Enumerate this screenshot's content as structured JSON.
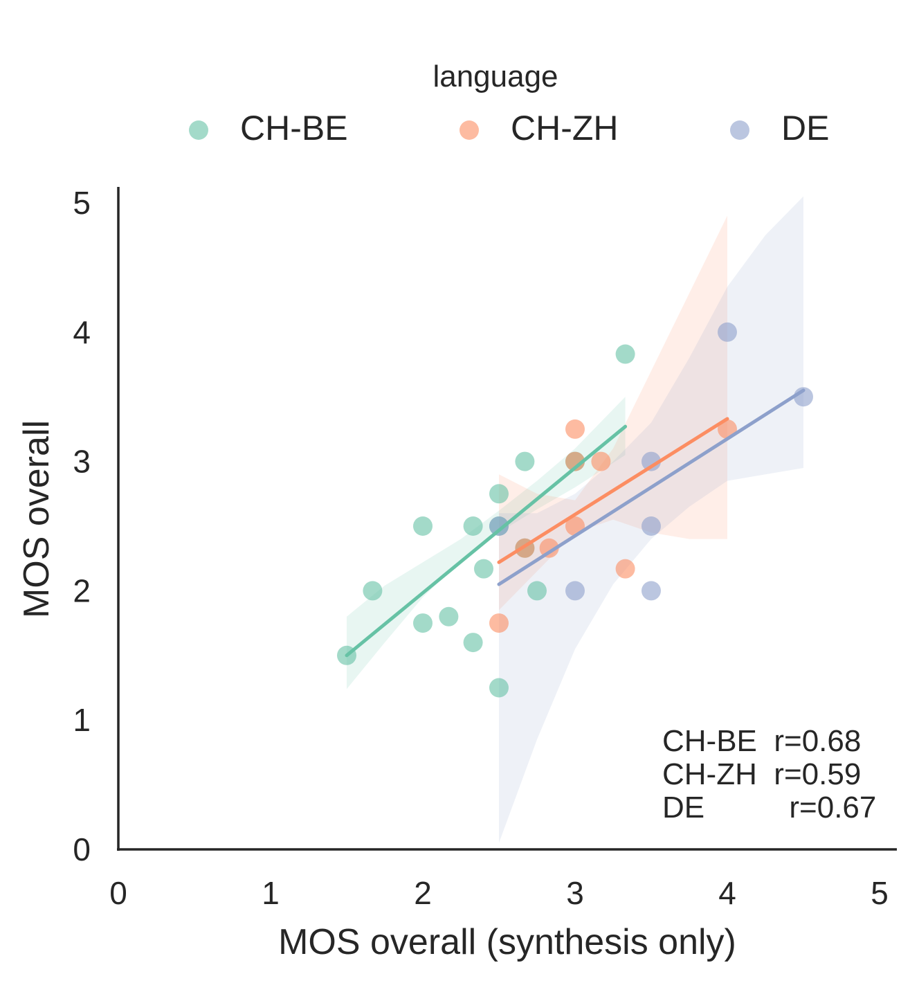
{
  "chart_data": {
    "type": "scatter",
    "xlabel": "MOS overall (synthesis only)",
    "ylabel": "MOS overall",
    "xlim": [
      0,
      5
    ],
    "ylim": [
      0,
      5
    ],
    "xticks": [
      "0",
      "1",
      "2",
      "3",
      "4",
      "5"
    ],
    "yticks": [
      "0",
      "1",
      "2",
      "3",
      "4",
      "5"
    ],
    "legend": {
      "title": "language",
      "placement": "top"
    },
    "series": [
      {
        "name": "CH-BE",
        "color": "#66c2a5",
        "points": [
          [
            1.5,
            1.5
          ],
          [
            1.67,
            2.0
          ],
          [
            2.0,
            2.5
          ],
          [
            2.0,
            1.75
          ],
          [
            2.17,
            1.8
          ],
          [
            2.33,
            2.5
          ],
          [
            2.33,
            1.6
          ],
          [
            2.4,
            2.17
          ],
          [
            2.5,
            2.75
          ],
          [
            2.5,
            2.5
          ],
          [
            2.5,
            1.25
          ],
          [
            2.67,
            3.0
          ],
          [
            2.67,
            2.33
          ],
          [
            2.75,
            2.0
          ],
          [
            3.0,
            3.0
          ],
          [
            3.33,
            3.83
          ]
        ],
        "fit": {
          "x": [
            1.5,
            3.33
          ],
          "y": [
            1.5,
            3.27
          ]
        },
        "ci": {
          "x": [
            1.5,
            1.75,
            2.0,
            2.25,
            2.5,
            2.75,
            3.0,
            3.33
          ],
          "lower": [
            1.24,
            1.6,
            1.95,
            2.23,
            2.45,
            2.63,
            2.8,
            3.05
          ],
          "upper": [
            1.8,
            2.04,
            2.22,
            2.4,
            2.62,
            2.85,
            3.1,
            3.5
          ]
        },
        "r_label": "CH-BE  r=0.68"
      },
      {
        "name": "CH-ZH",
        "color": "#fc8d62",
        "points": [
          [
            2.5,
            1.75
          ],
          [
            2.67,
            2.33
          ],
          [
            2.83,
            2.33
          ],
          [
            3.0,
            3.25
          ],
          [
            3.0,
            3.0
          ],
          [
            3.0,
            2.5
          ],
          [
            3.17,
            3.0
          ],
          [
            3.33,
            2.17
          ],
          [
            4.0,
            3.25
          ]
        ],
        "fit": {
          "x": [
            2.5,
            4.0
          ],
          "y": [
            2.22,
            3.33
          ]
        },
        "ci": {
          "x": [
            2.5,
            2.75,
            3.0,
            3.25,
            3.5,
            3.75,
            4.0
          ],
          "lower": [
            1.85,
            2.15,
            2.45,
            2.55,
            2.45,
            2.4,
            2.4
          ],
          "upper": [
            2.9,
            2.75,
            2.7,
            3.1,
            3.7,
            4.3,
            4.9
          ]
        },
        "r_label": "CH-ZH  r=0.59"
      },
      {
        "name": "DE",
        "color": "#8da0cb",
        "points": [
          [
            2.5,
            2.5
          ],
          [
            3.0,
            2.0
          ],
          [
            3.5,
            3.0
          ],
          [
            3.5,
            2.5
          ],
          [
            3.5,
            2.0
          ],
          [
            4.0,
            4.0
          ],
          [
            4.5,
            3.5
          ]
        ],
        "fit": {
          "x": [
            2.5,
            4.5
          ],
          "y": [
            2.05,
            3.55
          ]
        },
        "ci": {
          "x": [
            2.5,
            2.75,
            3.0,
            3.25,
            3.5,
            3.75,
            4.0,
            4.25,
            4.5
          ],
          "lower": [
            0.05,
            0.85,
            1.55,
            2.05,
            2.4,
            2.65,
            2.85,
            2.9,
            2.95
          ],
          "upper": [
            2.6,
            2.6,
            2.75,
            3.0,
            3.3,
            3.8,
            4.35,
            4.75,
            5.05
          ]
        },
        "r_label": "DE          r=0.67"
      }
    ]
  }
}
